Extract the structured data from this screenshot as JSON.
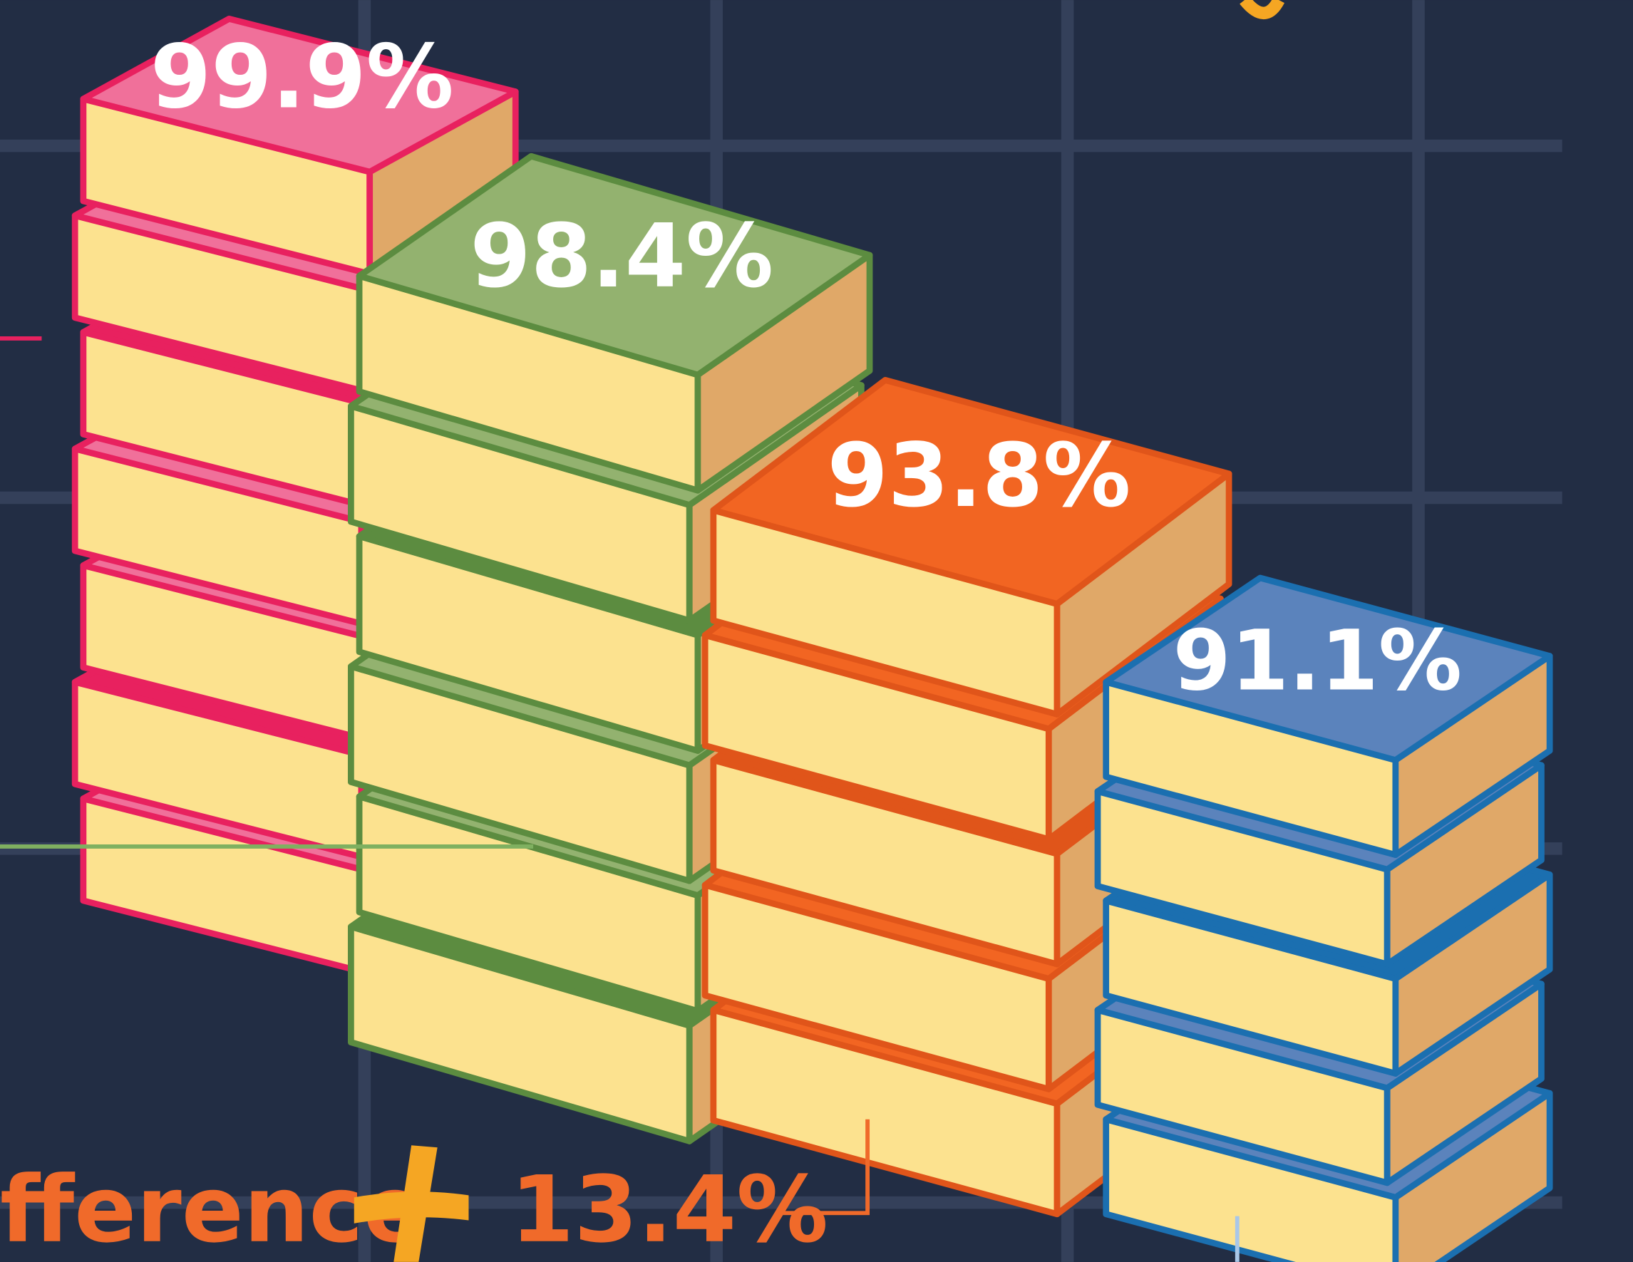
{
  "stacks": [
    {
      "label": "99.9%"
    },
    {
      "label": "98.4%"
    },
    {
      "label": "93.8%"
    },
    {
      "label": "91.1%"
    }
  ],
  "difference": {
    "label": "fference",
    "value": "13.4%"
  }
}
